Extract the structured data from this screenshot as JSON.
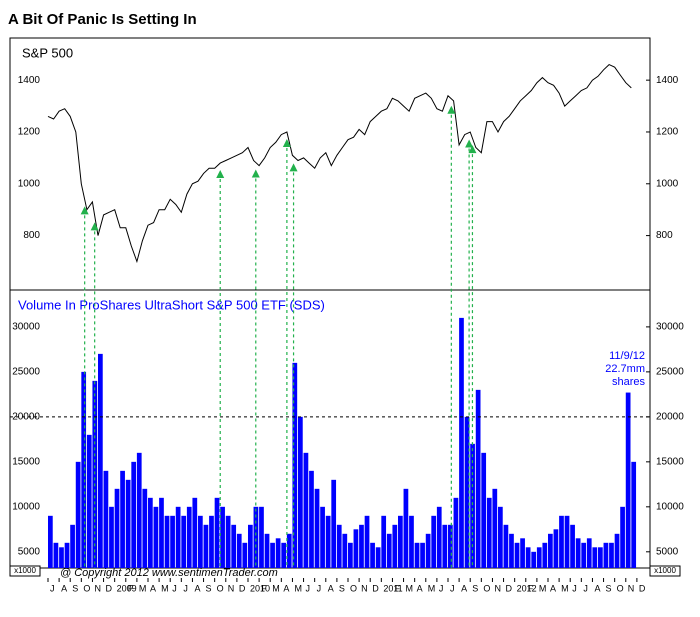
{
  "title": "A Bit Of Panic Is Setting In",
  "copyright": "@ Copyright 2012  www.sentimenTrader.com",
  "chart_data": [
    {
      "type": "line",
      "title": "S&P 500",
      "color": "#000000",
      "x": [
        0,
        0.5,
        1,
        1.5,
        2,
        2.5,
        3,
        3.5,
        4,
        4.5,
        5,
        5.5,
        6,
        6.5,
        7,
        7.5,
        8,
        8.5,
        9,
        9.5,
        10,
        10.5,
        11,
        11.5,
        12,
        12.5,
        13,
        13.5,
        14,
        14.5,
        15,
        15.5,
        16,
        16.5,
        17,
        17.5,
        18,
        18.5,
        19,
        19.5,
        20,
        20.5,
        21,
        21.5,
        22,
        22.5,
        23,
        23.5,
        24,
        24.5,
        25,
        25.5,
        26,
        26.5,
        27,
        27.5,
        28,
        28.5,
        29,
        29.5,
        30,
        30.5,
        31,
        31.5,
        32,
        32.5,
        33,
        33.5,
        34,
        34.5,
        35,
        35.5,
        36,
        36.5,
        37,
        37.5,
        38,
        38.5,
        39,
        39.5,
        40,
        40.5,
        41,
        41.5,
        42,
        42.5,
        43,
        43.5,
        44,
        44.5,
        45,
        45.5,
        46,
        46.5,
        47,
        47.5,
        48,
        48.5,
        49,
        49.5,
        50,
        50.5,
        51,
        51.5,
        52,
        52.5
      ],
      "values": [
        1260,
        1250,
        1280,
        1290,
        1260,
        1200,
        1000,
        900,
        930,
        800,
        880,
        890,
        900,
        830,
        830,
        760,
        700,
        780,
        840,
        850,
        900,
        900,
        940,
        920,
        890,
        960,
        1000,
        1010,
        1040,
        1060,
        1060,
        1080,
        1090,
        1100,
        1110,
        1120,
        1140,
        1090,
        1070,
        1100,
        1140,
        1160,
        1190,
        1200,
        1110,
        1090,
        1100,
        1080,
        1060,
        1100,
        1120,
        1070,
        1110,
        1140,
        1170,
        1180,
        1210,
        1190,
        1240,
        1260,
        1280,
        1290,
        1330,
        1320,
        1300,
        1280,
        1330,
        1340,
        1350,
        1330,
        1290,
        1280,
        1340,
        1320,
        1150,
        1190,
        1200,
        1140,
        1120,
        1240,
        1240,
        1200,
        1240,
        1260,
        1290,
        1320,
        1340,
        1360,
        1390,
        1410,
        1390,
        1380,
        1350,
        1300,
        1320,
        1340,
        1360,
        1370,
        1400,
        1415,
        1440,
        1460,
        1450,
        1420,
        1390,
        1370
      ],
      "xlim": [
        0,
        54
      ],
      "ylim": [
        590,
        1555
      ],
      "yticks": [
        800,
        1000,
        1200,
        1400
      ],
      "signals": {
        "color": "#22b14c",
        "x": [
          3.3,
          4.2,
          15.5,
          18.7,
          21.5,
          22.1,
          36.3,
          37.9,
          38.2
        ]
      }
    },
    {
      "type": "bar",
      "title": "Volume In ProShares UltraShort S&P 500 ETF (SDS)",
      "color": "#0000ff",
      "x": [
        0,
        0.5,
        1,
        1.5,
        2,
        2.5,
        3,
        3.5,
        4,
        4.5,
        5,
        5.5,
        6,
        6.5,
        7,
        7.5,
        8,
        8.5,
        9,
        9.5,
        10,
        10.5,
        11,
        11.5,
        12,
        12.5,
        13,
        13.5,
        14,
        14.5,
        15,
        15.5,
        16,
        16.5,
        17,
        17.5,
        18,
        18.5,
        19,
        19.5,
        20,
        20.5,
        21,
        21.5,
        22,
        22.5,
        23,
        23.5,
        24,
        24.5,
        25,
        25.5,
        26,
        26.5,
        27,
        27.5,
        28,
        28.5,
        29,
        29.5,
        30,
        30.5,
        31,
        31.5,
        32,
        32.5,
        33,
        33.5,
        34,
        34.5,
        35,
        35.5,
        36,
        36.5,
        37,
        37.5,
        38,
        38.5,
        39,
        39.5,
        40,
        40.5,
        41,
        41.5,
        42,
        42.5,
        43,
        43.5,
        44,
        44.5,
        45,
        45.5,
        46,
        46.5,
        47,
        47.5,
        48,
        48.5,
        49,
        49.5,
        50,
        50.5,
        51,
        51.5,
        52,
        52.5
      ],
      "values": [
        9000,
        6000,
        5500,
        6000,
        8000,
        15000,
        25000,
        18000,
        24000,
        27000,
        14000,
        10000,
        12000,
        14000,
        13000,
        15000,
        16000,
        12000,
        11000,
        10000,
        11000,
        9000,
        9000,
        10000,
        9000,
        10000,
        11000,
        9000,
        8000,
        9000,
        11000,
        10000,
        9000,
        8000,
        7000,
        6000,
        8000,
        10000,
        10000,
        7000,
        6000,
        6500,
        6000,
        7000,
        26000,
        20000,
        16000,
        14000,
        12000,
        10000,
        9000,
        13000,
        8000,
        7000,
        6000,
        7500,
        8000,
        9000,
        6000,
        5500,
        9000,
        7000,
        8000,
        9000,
        12000,
        9000,
        6000,
        6000,
        7000,
        9000,
        10000,
        8000,
        8000,
        11000,
        31000,
        20000,
        17000,
        23000,
        16000,
        11000,
        12000,
        10000,
        8000,
        7000,
        6000,
        6500,
        5500,
        5000,
        5500,
        6000,
        7000,
        7500,
        9000,
        9000,
        8000,
        6500,
        6000,
        6500,
        5500,
        5500,
        6000,
        6000,
        7000,
        10000,
        22700,
        15000
      ],
      "xlim": [
        0,
        54
      ],
      "ylim": [
        3200,
        34100
      ],
      "yticks": [
        5000,
        10000,
        15000,
        20000,
        25000,
        30000
      ],
      "unit_label": "x1000",
      "reference_line": 20000,
      "annotation": [
        "11/9/12",
        "22.7mm",
        "shares"
      ],
      "xticks": [
        {
          "value": 0,
          "label": "J"
        },
        {
          "value": 1,
          "label": "A"
        },
        {
          "value": 2,
          "label": "S"
        },
        {
          "value": 3,
          "label": "O"
        },
        {
          "value": 4,
          "label": "N"
        },
        {
          "value": 5,
          "label": "D"
        },
        {
          "value": 6,
          "label": "2009"
        },
        {
          "value": 7,
          "label": "F"
        },
        {
          "value": 8,
          "label": "M"
        },
        {
          "value": 9,
          "label": "A"
        },
        {
          "value": 10,
          "label": "M"
        },
        {
          "value": 11,
          "label": "J"
        },
        {
          "value": 12,
          "label": "J"
        },
        {
          "value": 13,
          "label": "A"
        },
        {
          "value": 14,
          "label": "S"
        },
        {
          "value": 15,
          "label": "O"
        },
        {
          "value": 16,
          "label": "N"
        },
        {
          "value": 17,
          "label": "D"
        },
        {
          "value": 18,
          "label": "2010"
        },
        {
          "value": 19,
          "label": "F"
        },
        {
          "value": 20,
          "label": "M"
        },
        {
          "value": 21,
          "label": "A"
        },
        {
          "value": 22,
          "label": "M"
        },
        {
          "value": 23,
          "label": "J"
        },
        {
          "value": 24,
          "label": "J"
        },
        {
          "value": 25,
          "label": "A"
        },
        {
          "value": 26,
          "label": "S"
        },
        {
          "value": 27,
          "label": "O"
        },
        {
          "value": 28,
          "label": "N"
        },
        {
          "value": 29,
          "label": "D"
        },
        {
          "value": 30,
          "label": "2011"
        },
        {
          "value": 31,
          "label": "F"
        },
        {
          "value": 32,
          "label": "M"
        },
        {
          "value": 33,
          "label": "A"
        },
        {
          "value": 34,
          "label": "M"
        },
        {
          "value": 35,
          "label": "J"
        },
        {
          "value": 36,
          "label": "J"
        },
        {
          "value": 37,
          "label": "A"
        },
        {
          "value": 38,
          "label": "S"
        },
        {
          "value": 39,
          "label": "O"
        },
        {
          "value": 40,
          "label": "N"
        },
        {
          "value": 41,
          "label": "D"
        },
        {
          "value": 42,
          "label": "2012"
        },
        {
          "value": 43,
          "label": "F"
        },
        {
          "value": 44,
          "label": "M"
        },
        {
          "value": 45,
          "label": "A"
        },
        {
          "value": 46,
          "label": "M"
        },
        {
          "value": 47,
          "label": "J"
        },
        {
          "value": 48,
          "label": "J"
        },
        {
          "value": 49,
          "label": "A"
        },
        {
          "value": 50,
          "label": "S"
        },
        {
          "value": 51,
          "label": "O"
        },
        {
          "value": 52,
          "label": "N"
        },
        {
          "value": 53,
          "label": "D"
        }
      ]
    }
  ]
}
